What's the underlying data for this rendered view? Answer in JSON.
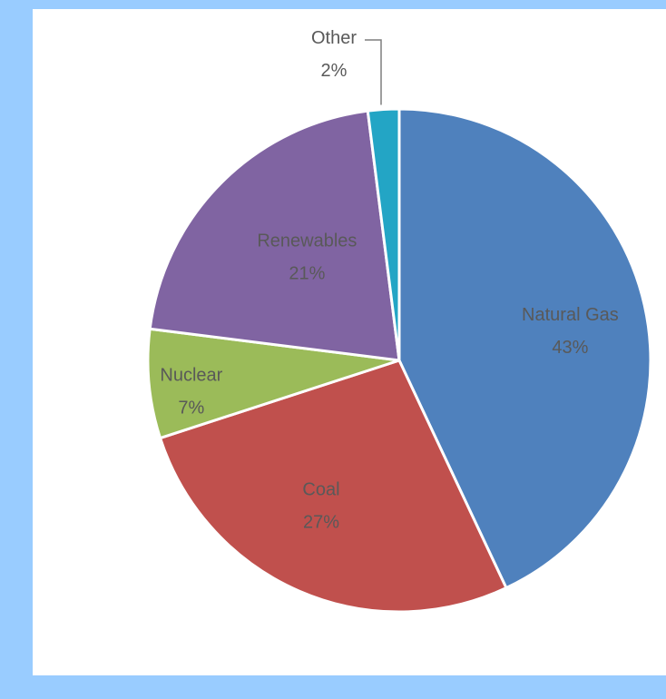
{
  "chart_data": {
    "type": "pie",
    "title": "",
    "start_angle_deg": 0,
    "direction": "clockwise",
    "slices": [
      {
        "label": "Natural Gas",
        "value": 43,
        "value_label": "43%",
        "color": "#4f81bd"
      },
      {
        "label": "Coal",
        "value": 27,
        "value_label": "27%",
        "color": "#c0504d"
      },
      {
        "label": "Nuclear",
        "value": 7,
        "value_label": "7%",
        "color": "#9bbb59"
      },
      {
        "label": "Renewables",
        "value": 21,
        "value_label": "21%",
        "color": "#8064a2"
      },
      {
        "label": "Other",
        "value": 2,
        "value_label": "2%",
        "color": "#23a5c5"
      }
    ]
  },
  "colors": {
    "background": "#99ccff",
    "panel": "#ffffff",
    "label_text": "#595959"
  }
}
